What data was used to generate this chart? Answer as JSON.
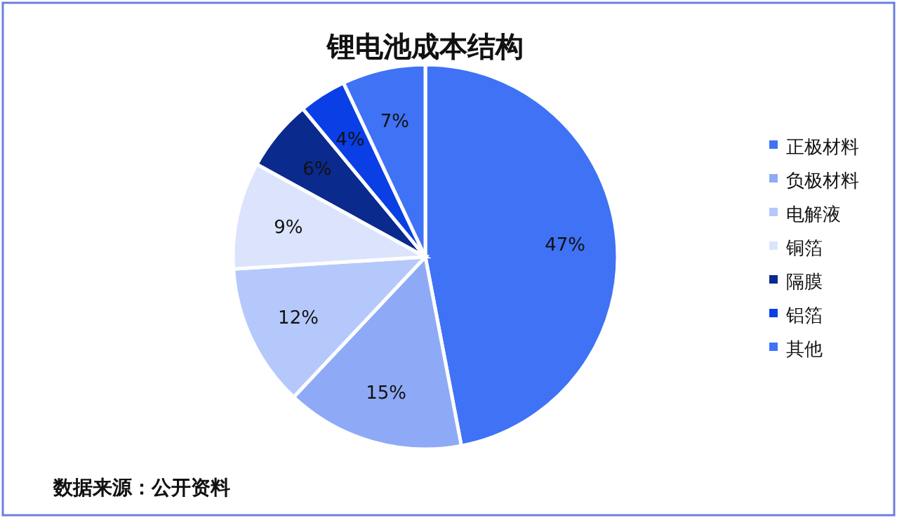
{
  "chart_data": {
    "type": "pie",
    "title": "锂电池成本结构",
    "categories": [
      "正极材料",
      "负极材料",
      "电解液",
      "铜箔",
      "隔膜",
      "铝箔",
      "其他"
    ],
    "values": [
      47,
      15,
      12,
      9,
      6,
      4,
      7
    ],
    "colors": [
      "#3f72f5",
      "#8eaaf6",
      "#b5c8fb",
      "#dbe4fc",
      "#0b2a8e",
      "#0a3fe6",
      "#3f72f5"
    ],
    "value_labels": [
      "47%",
      "15%",
      "12%",
      "9%",
      "6%",
      "4%",
      "7%"
    ],
    "legend": "right",
    "annotations": [
      "数据来源：公开资料"
    ]
  }
}
